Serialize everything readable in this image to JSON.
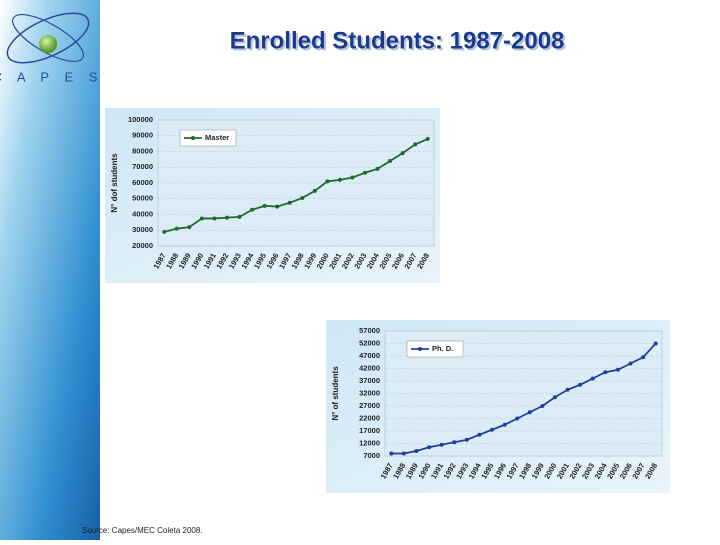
{
  "slide": {
    "title": "Enrolled Students: 1987-2008",
    "logo_text": "C A P E S",
    "source": "Source: Capes/MEC Coleta 2008."
  },
  "chart_data": [
    {
      "type": "line",
      "y_label": "N° dof students",
      "categories": [
        "1987",
        "1988",
        "1989",
        "1990",
        "1991",
        "1992",
        "1993",
        "1994",
        "1995",
        "1996",
        "1997",
        "1998",
        "1999",
        "2000",
        "2001",
        "2002",
        "2003",
        "2004",
        "2005",
        "2006",
        "2007",
        "2008"
      ],
      "series": [
        {
          "name": "Master",
          "color": "#1e6b2e",
          "values": [
            29000,
            31000,
            32000,
            37500,
            37500,
            38000,
            38500,
            43000,
            45500,
            45000,
            47500,
            50500,
            55000,
            61000,
            62000,
            63500,
            66500,
            69000,
            74000,
            79000,
            84500,
            88000
          ]
        }
      ],
      "ylim": [
        20000,
        100000
      ],
      "yticks": [
        20000,
        30000,
        40000,
        50000,
        60000,
        70000,
        80000,
        90000,
        100000
      ],
      "grid": true,
      "legend": "top-left"
    },
    {
      "type": "line",
      "y_label": "N° of students",
      "categories": [
        "1987",
        "1988",
        "1989",
        "1990",
        "1991",
        "1992",
        "1993",
        "1994",
        "1995",
        "1996",
        "1997",
        "1998",
        "1999",
        "2000",
        "2001",
        "2002",
        "2003",
        "2004",
        "2005",
        "2006",
        "2007",
        "2008"
      ],
      "series": [
        {
          "name": "Ph. D.",
          "color": "#1f3f9f",
          "values": [
            8000,
            8000,
            9000,
            10500,
            11500,
            12500,
            13500,
            15500,
            17500,
            19500,
            22000,
            24500,
            27000,
            30500,
            33500,
            35500,
            38000,
            40500,
            41500,
            44000,
            46500,
            52000
          ]
        }
      ],
      "ylim": [
        7000,
        57000
      ],
      "yticks": [
        7000,
        12000,
        17000,
        22000,
        27000,
        32000,
        37000,
        42000,
        47000,
        52000,
        57000
      ],
      "grid": true,
      "legend": "top-left"
    }
  ]
}
